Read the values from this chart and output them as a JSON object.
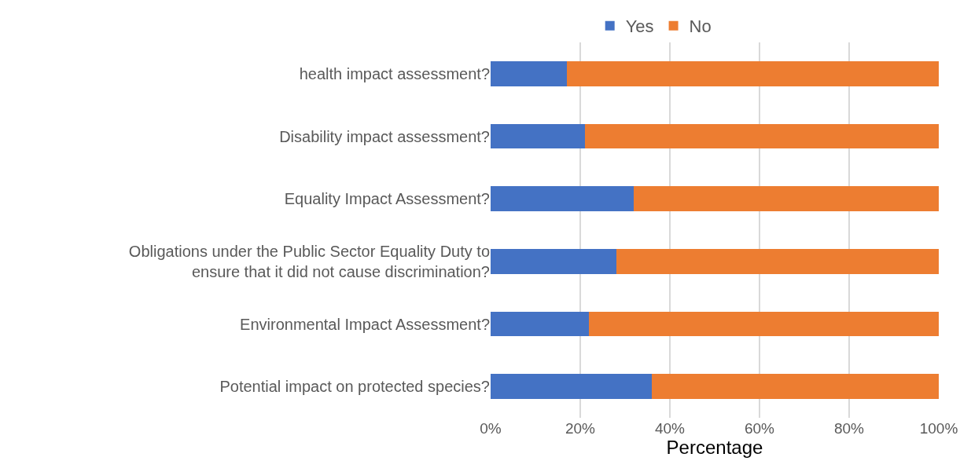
{
  "chart_data": {
    "type": "bar",
    "orientation": "horizontal",
    "stacked": true,
    "categories": [
      "health impact assessment?",
      "Disability impact assessment?",
      "Equality Impact Assessment?",
      "Obligations under the Public Sector Equality Duty to ensure that it did not cause discrimination?",
      "Environmental Impact Assessment?",
      "Potential impact on protected species?"
    ],
    "series": [
      {
        "name": "Yes",
        "color": "#4472c4",
        "values": [
          17,
          21,
          32,
          28,
          22,
          36
        ]
      },
      {
        "name": "No",
        "color": "#ed7d31",
        "values": [
          83,
          79,
          68,
          72,
          78,
          64
        ]
      }
    ],
    "xlim": [
      0,
      100
    ],
    "xticks": [
      {
        "value": 0,
        "label": "0%"
      },
      {
        "value": 20,
        "label": "20%"
      },
      {
        "value": 40,
        "label": "40%"
      },
      {
        "value": 60,
        "label": "60%"
      },
      {
        "value": 80,
        "label": "80%"
      },
      {
        "value": 100,
        "label": "100%"
      }
    ],
    "xlabel": "Percentage",
    "grid": "x",
    "legend": "top"
  }
}
